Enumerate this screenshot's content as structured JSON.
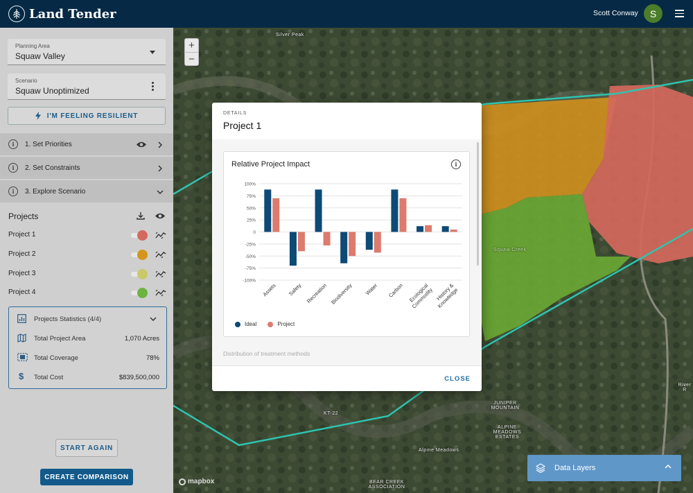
{
  "header": {
    "app_name": "Land Tender",
    "user_name": "Scott Conway",
    "avatar_initial": "S"
  },
  "sidebar": {
    "planning_area": {
      "label": "Planning Area",
      "value": "Squaw Valley"
    },
    "scenario": {
      "label": "Scenario",
      "value": "Squaw Unoptimized"
    },
    "feeling_resilient_label": "I'M FEELING RESILIENT",
    "steps": [
      {
        "label": "1. Set Priorities"
      },
      {
        "label": "2. Set Constraints"
      },
      {
        "label": "3. Explore Scenario"
      }
    ],
    "projects_title": "Projects",
    "projects": [
      {
        "label": "Project 1",
        "color": "#d4695e"
      },
      {
        "label": "Project 2",
        "color": "#d3951c"
      },
      {
        "label": "Project 3",
        "color": "#c9c96a"
      },
      {
        "label": "Project 4",
        "color": "#6db33f"
      }
    ],
    "stats": {
      "title": "Projects Statistics (4/4)",
      "rows": [
        {
          "label": "Total Project Area",
          "value": "1,070 Acres"
        },
        {
          "label": "Total Coverage",
          "value": "78%"
        },
        {
          "label": "Total Cost",
          "value": "$839,500,000"
        }
      ]
    },
    "start_again_label": "START AGAIN",
    "create_comparison_label": "CREATE COMPARISON"
  },
  "map": {
    "labels": [
      {
        "text": "Silver Peak"
      },
      {
        "text": "Squaw Creek"
      },
      {
        "text": "KT-22"
      },
      {
        "text": "JUNIPER MOUNTAIN"
      },
      {
        "text": "ALPINE MEADOWS ESTATES"
      },
      {
        "text": "Alpine Meadows"
      },
      {
        "text": "BEAR CREEK ASSOCIATION"
      },
      {
        "text": "River R"
      }
    ],
    "zoom_in": "+",
    "zoom_out": "−",
    "attribution": "mapbox",
    "data_layers_label": "Data Layers"
  },
  "modal": {
    "caption": "DETAILS",
    "title": "Project 1",
    "next_section": "Distribution of treatment methods",
    "close_label": "CLOSE"
  },
  "chart_data": {
    "type": "bar",
    "title": "Relative Project Impact",
    "categories": [
      "Assets",
      "Safety",
      "Recreation",
      "Biodiversity",
      "Water",
      "Carbon",
      "Ecological Commodity",
      "History & Knowledge"
    ],
    "series": [
      {
        "name": "Ideal",
        "color": "#0d4a75",
        "values": [
          88,
          -70,
          88,
          -65,
          -37,
          88,
          12,
          12
        ]
      },
      {
        "name": "Project",
        "color": "#dc7b6e",
        "values": [
          70,
          -40,
          -28,
          -50,
          -43,
          70,
          14,
          5
        ]
      }
    ],
    "ylim": [
      -100,
      100
    ],
    "yticks": [
      100,
      75,
      50,
      25,
      0,
      -25,
      -50,
      -75,
      -100
    ],
    "ytick_labels": [
      "100%",
      "75%",
      "50%",
      "25%",
      "0",
      "-25%",
      "-50%",
      "-75%",
      "-100%"
    ],
    "xlabel": "",
    "ylabel": "",
    "grid": true,
    "legend_position": "bottom-left"
  }
}
